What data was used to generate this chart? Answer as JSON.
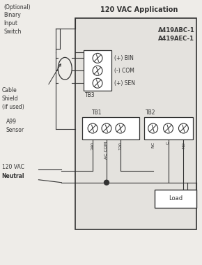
{
  "title": "120 VAC Application",
  "model_lines": [
    "A419ABC-1",
    "A419AEC-1"
  ],
  "bg_color": "#eeece8",
  "line_color": "#333333",
  "tb3_label": "TB3",
  "tb3_terminals": [
    "(+) BIN",
    "(-) COM",
    "(+) SEN"
  ],
  "tb1_label": "TB1",
  "tb1_terminals": [
    "240",
    "AC COM",
    "120"
  ],
  "tb2_label": "TB2",
  "tb2_terminals": [
    "NC",
    "C",
    "NO"
  ],
  "load_label": "Load",
  "left_label_optional": "(Optional)\nBinary\nInput\nSwitch",
  "left_label_cable": "Cable\nShield\n(if used)",
  "left_label_sensor": "A99\nSensor",
  "left_label_vac": "120 VAC",
  "left_label_neutral": "Neutral"
}
